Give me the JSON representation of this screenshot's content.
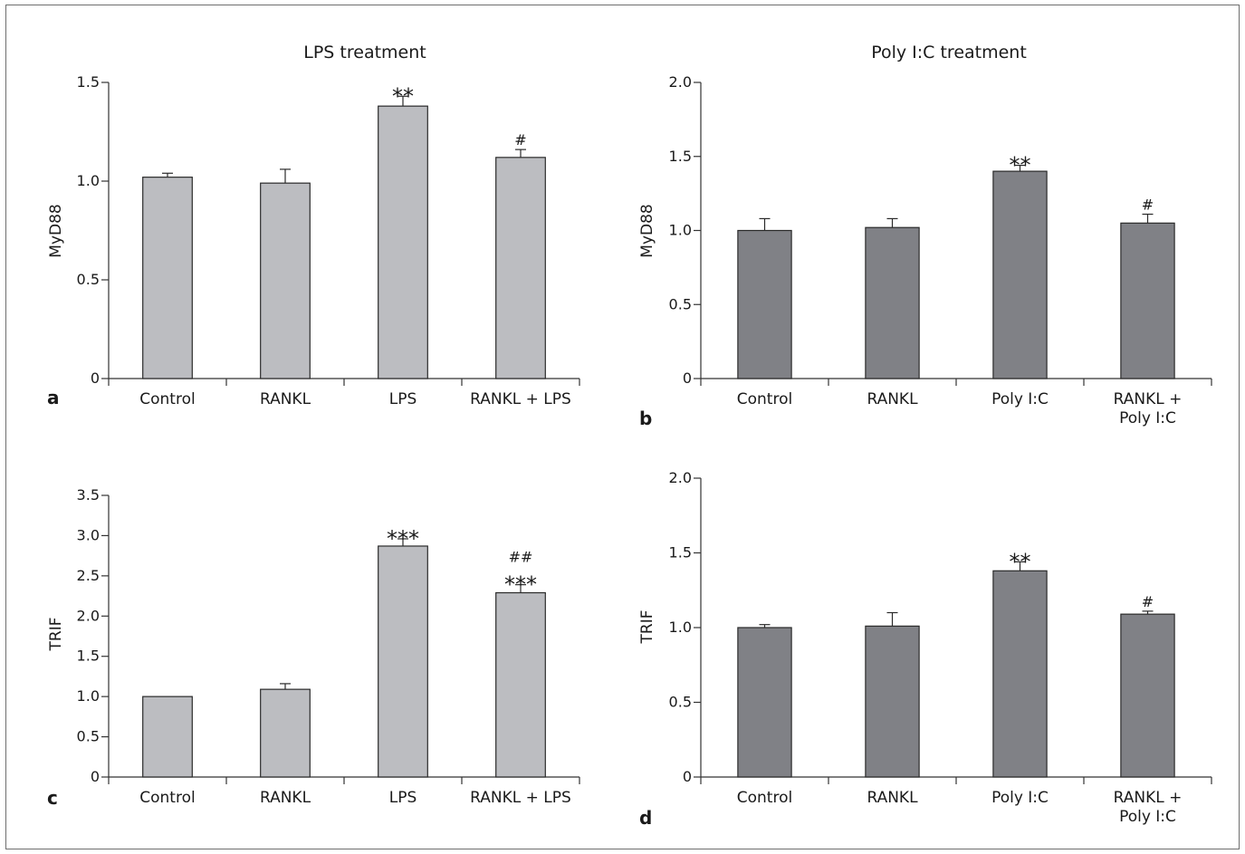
{
  "colors": {
    "panel_ac": "#bcbdc1",
    "panel_bd": "#808186",
    "axis": "#333333",
    "frame": "#6e6e6e"
  },
  "chart_data": [
    {
      "panel": "a",
      "type": "bar",
      "title": "LPS treatment",
      "ylabel": "MyD88",
      "categories": [
        [
          "Control"
        ],
        [
          "RANKL"
        ],
        [
          "LPS"
        ],
        [
          "RANKL + LPS"
        ]
      ],
      "values": [
        1.02,
        0.99,
        1.38,
        1.12
      ],
      "errors": [
        0.02,
        0.07,
        0.05,
        0.04
      ],
      "significance": [
        [],
        [],
        [
          "**"
        ],
        [
          "#"
        ]
      ],
      "ylim": [
        0,
        1.5
      ],
      "yticks": [
        0,
        0.5,
        1.0,
        1.5
      ],
      "ytick_labels": [
        "0",
        "0.5",
        "1.0",
        "1.5"
      ],
      "color": "#bcbdc1"
    },
    {
      "panel": "b",
      "type": "bar",
      "title": "Poly I:C treatment",
      "ylabel": "MyD88",
      "categories": [
        [
          "Control"
        ],
        [
          "RANKL"
        ],
        [
          "Poly I:C"
        ],
        [
          "RANKL +",
          "Poly I:C"
        ]
      ],
      "values": [
        1.0,
        1.02,
        1.4,
        1.05
      ],
      "errors": [
        0.08,
        0.06,
        0.04,
        0.06
      ],
      "significance": [
        [],
        [],
        [
          "**"
        ],
        [
          "#"
        ]
      ],
      "ylim": [
        0,
        2.0
      ],
      "yticks": [
        0,
        0.5,
        1.0,
        1.5,
        2.0
      ],
      "ytick_labels": [
        "0",
        "0.5",
        "1.0",
        "1.5",
        "2.0"
      ],
      "color": "#808186"
    },
    {
      "panel": "c",
      "type": "bar",
      "title": "",
      "ylabel": "TRIF",
      "categories": [
        [
          "Control"
        ],
        [
          "RANKL"
        ],
        [
          "LPS"
        ],
        [
          "RANKL + LPS"
        ]
      ],
      "values": [
        1.0,
        1.09,
        2.87,
        2.29
      ],
      "errors": [
        0.0,
        0.07,
        0.09,
        0.1
      ],
      "significance": [
        [],
        [],
        [
          "***"
        ],
        [
          "##",
          "***"
        ]
      ],
      "ylim": [
        0,
        3.5
      ],
      "yticks": [
        0,
        0.5,
        1.0,
        1.5,
        2.0,
        2.5,
        3.0,
        3.5
      ],
      "ytick_labels": [
        "0",
        "0.5",
        "1.0",
        "1.5",
        "2.0",
        "2.5",
        "3.0",
        "3.5"
      ],
      "color": "#bcbdc1"
    },
    {
      "panel": "d",
      "type": "bar",
      "title": "",
      "ylabel": "TRIF",
      "categories": [
        [
          "Control"
        ],
        [
          "RANKL"
        ],
        [
          "Poly I:C"
        ],
        [
          "RANKL +",
          "Poly I:C"
        ]
      ],
      "values": [
        1.0,
        1.01,
        1.38,
        1.09
      ],
      "errors": [
        0.02,
        0.09,
        0.06,
        0.02
      ],
      "significance": [
        [],
        [],
        [
          "**"
        ],
        [
          "#"
        ]
      ],
      "ylim": [
        0,
        2.0
      ],
      "yticks": [
        0,
        0.5,
        1.0,
        1.5,
        2.0
      ],
      "ytick_labels": [
        "0",
        "0.5",
        "1.0",
        "1.5",
        "2.0"
      ],
      "color": "#808186"
    }
  ]
}
